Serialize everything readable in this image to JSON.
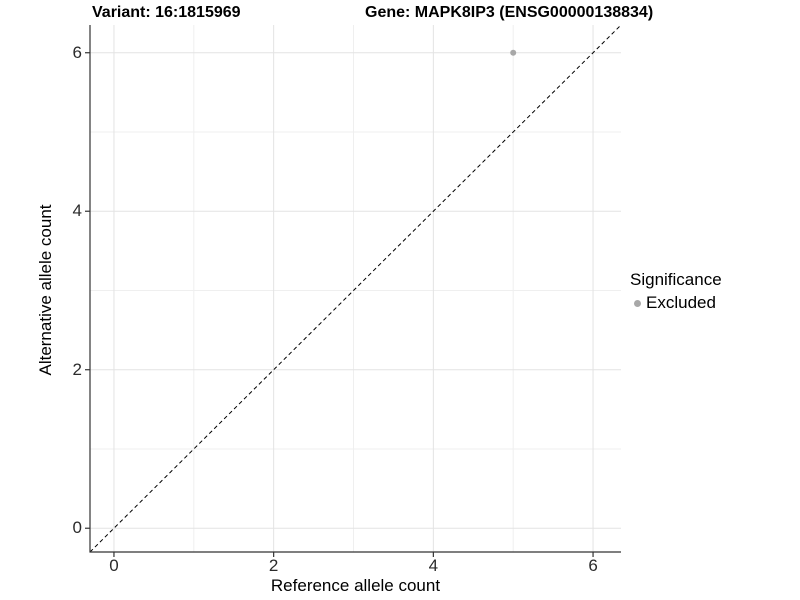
{
  "chart_data": {
    "type": "scatter",
    "title_left": "Variant: 16:1815969",
    "title_right": "Gene: MAPK8IP3 (ENSG00000138834)",
    "xlabel": "Reference allele count",
    "ylabel": "Alternative allele count",
    "xlim": [
      -0.3,
      6.35
    ],
    "ylim": [
      -0.3,
      6.35
    ],
    "x_ticks": [
      0,
      2,
      4,
      6
    ],
    "y_ticks": [
      0,
      2,
      4,
      6
    ],
    "x_minor_gridlines": [
      1,
      3,
      5
    ],
    "y_minor_gridlines": [
      1,
      3,
      5
    ],
    "grid": "major and minor, light gray on white panel",
    "identity_line": {
      "type": "abline y=x",
      "style": "dashed",
      "color": "#000000"
    },
    "series": [
      {
        "name": "Excluded",
        "color": "#a8a8a8",
        "points": [
          {
            "x": 5,
            "y": 6
          }
        ]
      }
    ],
    "legend": {
      "title": "Significance",
      "position": "right",
      "items": [
        {
          "label": "Excluded",
          "color": "#a8a8a8"
        }
      ]
    }
  },
  "colors": {
    "background": "#ffffff",
    "axis_line": "#333333",
    "tick_mark": "#333333",
    "tick_label": "#2b2b2b",
    "grid_major": "#e3e3e3",
    "grid_minor": "#efefef",
    "point": "#a8a8a8",
    "title_text": "#000000"
  }
}
